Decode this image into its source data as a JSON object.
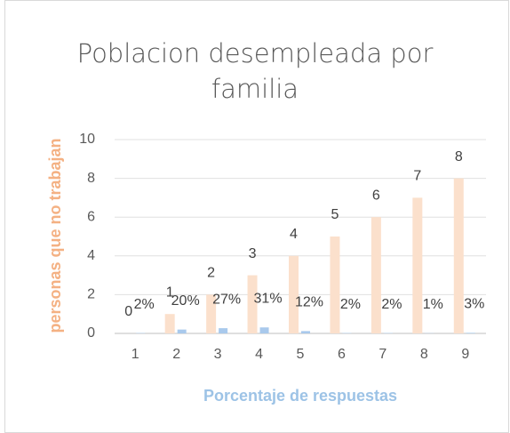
{
  "chart_data": {
    "type": "bar",
    "title": "Poblacion desempleada por familia",
    "x_label": "Porcentaje de respuestas",
    "y_label": "personas que no trabajan",
    "categories": [
      "1",
      "2",
      "3",
      "4",
      "5",
      "6",
      "7",
      "8",
      "9"
    ],
    "series": [
      {
        "color": "#fbe0cc",
        "values": [
          0,
          1,
          2,
          3,
          4,
          5,
          6,
          7,
          8
        ]
      },
      {
        "color": "#a9c9ec",
        "values": [
          0.02,
          0.2,
          0.27,
          0.31,
          0.12,
          0.02,
          0.02,
          0.01,
          0.03
        ],
        "value_labels": [
          "2%",
          "20%",
          "27%",
          "31%",
          "12%",
          "2%",
          "2%",
          "1%",
          "3%"
        ]
      }
    ],
    "ylim": [
      0,
      10
    ],
    "yticks": [
      0,
      2,
      4,
      6,
      8,
      10
    ],
    "grid": true,
    "x_label_color": "#9dc3e6",
    "y_label_color": "#f4b183"
  }
}
